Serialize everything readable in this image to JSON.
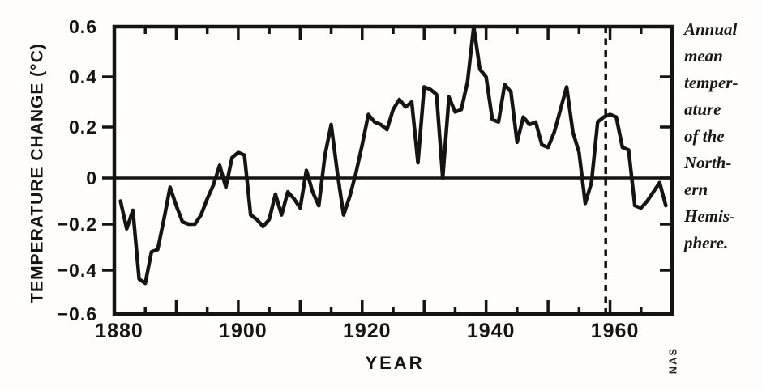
{
  "figure_type": "scanned line chart",
  "ink_color": "#141414",
  "background_color": "#fffefd",
  "caption": {
    "lines": [
      "Annual",
      "mean",
      "temper-",
      "ature",
      "of the",
      "North-",
      "ern",
      "Hemis-",
      "phere."
    ]
  },
  "credit": "NAS",
  "chart_data": {
    "type": "line",
    "title": "Annual mean temperature of the Northern Hemisphere",
    "xlabel": "YEAR",
    "ylabel": "TEMPERATURE CHANGE (°C)",
    "xlim": [
      1880,
      1970
    ],
    "ylim": [
      -0.6,
      0.6
    ],
    "grid": false,
    "zero_line": true,
    "y_tick_labels": [
      "0.6",
      "0.4",
      "0.2",
      "0",
      "−0.2",
      "−0.4",
      "−0.6"
    ],
    "y_tick_values": [
      0.6,
      0.4,
      0.2,
      0,
      -0.2,
      -0.4,
      -0.6
    ],
    "x_tick_labels": [
      "1880",
      "1900",
      "1920",
      "1940",
      "1960"
    ],
    "x_tick_values": [
      1880,
      1900,
      1920,
      1940,
      1960
    ],
    "x_minor_tick_step": 5,
    "reference_line": {
      "style": "dashed",
      "orientation": "vertical",
      "x": 1959.3
    },
    "x": [
      1881,
      1882,
      1883,
      1884,
      1885,
      1886,
      1887,
      1888,
      1889,
      1890,
      1891,
      1892,
      1893,
      1894,
      1895,
      1896,
      1897,
      1898,
      1899,
      1900,
      1901,
      1902,
      1903,
      1904,
      1905,
      1906,
      1907,
      1908,
      1909,
      1910,
      1911,
      1912,
      1913,
      1914,
      1915,
      1916,
      1917,
      1918,
      1919,
      1920,
      1921,
      1922,
      1923,
      1924,
      1925,
      1926,
      1927,
      1928,
      1929,
      1930,
      1931,
      1932,
      1933,
      1934,
      1935,
      1936,
      1937,
      1938,
      1939,
      1940,
      1941,
      1942,
      1943,
      1944,
      1945,
      1946,
      1947,
      1948,
      1949,
      1950,
      1951,
      1952,
      1953,
      1954,
      1955,
      1956,
      1957,
      1958,
      1959,
      1960,
      1961,
      1962,
      1963,
      1964,
      1965,
      1966,
      1967,
      1968,
      1969
    ],
    "y": [
      -0.1,
      -0.22,
      -0.14,
      -0.44,
      -0.46,
      -0.32,
      -0.31,
      -0.18,
      -0.04,
      -0.12,
      -0.19,
      -0.2,
      -0.2,
      -0.16,
      -0.09,
      -0.03,
      0.05,
      -0.04,
      0.08,
      0.1,
      0.09,
      -0.16,
      -0.18,
      -0.21,
      -0.18,
      -0.07,
      -0.16,
      -0.06,
      -0.09,
      -0.13,
      0.03,
      -0.06,
      -0.12,
      0.09,
      0.21,
      0.02,
      -0.16,
      -0.08,
      0.02,
      0.13,
      0.25,
      0.22,
      0.21,
      0.19,
      0.27,
      0.31,
      0.28,
      0.3,
      0.06,
      0.36,
      0.35,
      0.33,
      0.0,
      0.32,
      0.26,
      0.27,
      0.38,
      0.6,
      0.43,
      0.4,
      0.23,
      0.22,
      0.37,
      0.34,
      0.14,
      0.24,
      0.21,
      0.22,
      0.13,
      0.12,
      0.18,
      0.27,
      0.36,
      0.18,
      0.1,
      -0.11,
      -0.02,
      0.22,
      0.24,
      0.25,
      0.24,
      0.12,
      0.11,
      -0.12,
      -0.13,
      -0.1,
      -0.06,
      -0.02,
      -0.12
    ]
  }
}
